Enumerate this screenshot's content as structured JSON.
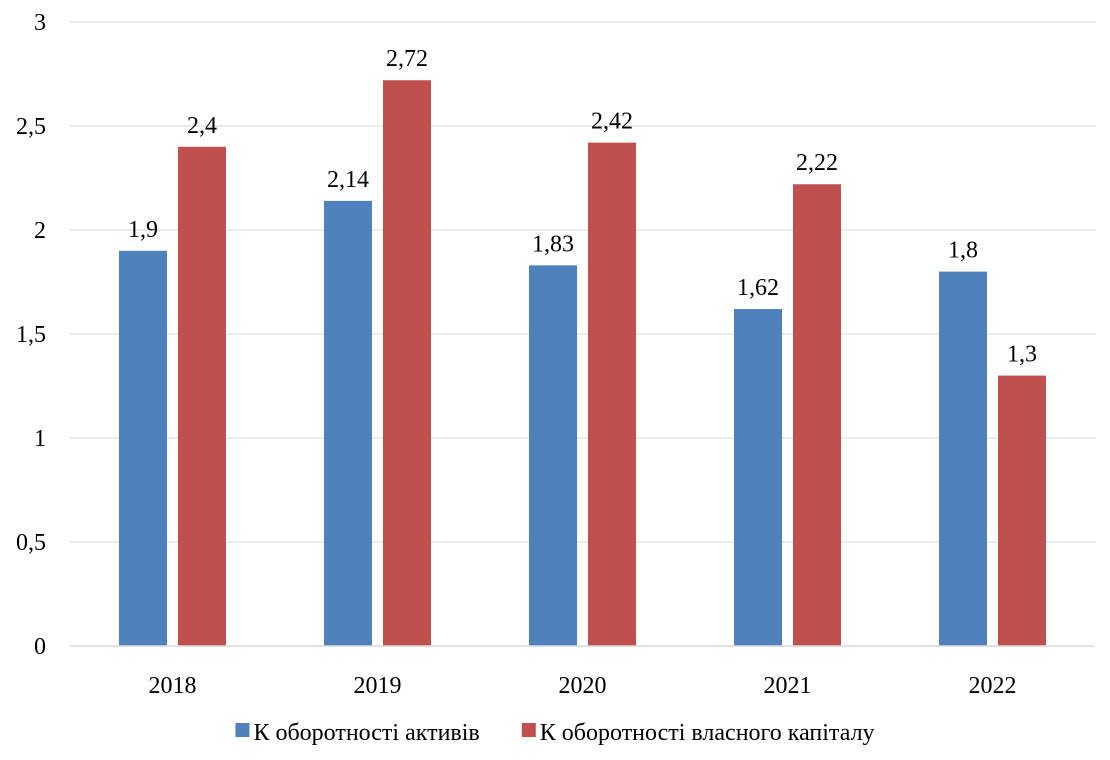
{
  "chart_data": {
    "type": "bar",
    "categories": [
      "2018",
      "2019",
      "2020",
      "2021",
      "2022"
    ],
    "series": [
      {
        "name": "К оборотності активів",
        "values": [
          1.9,
          2.14,
          1.83,
          1.62,
          1.8
        ],
        "labels": [
          "1,9",
          "2,14",
          "1,83",
          "1,62",
          "1,8"
        ],
        "color": "#4f81bd"
      },
      {
        "name": "К оборотності власного капіталу",
        "values": [
          2.4,
          2.72,
          2.42,
          2.22,
          1.3
        ],
        "labels": [
          "2,4",
          "2,72",
          "2,42",
          "2,22",
          "1,3"
        ],
        "color": "#c0504d"
      }
    ],
    "ylim": [
      0,
      3
    ],
    "yticks": [
      0,
      0.5,
      1,
      1.5,
      2,
      2.5,
      3
    ],
    "ytick_labels": [
      "0",
      "0,5",
      "1",
      "1,5",
      "2",
      "2,5",
      "3"
    ],
    "grid": true,
    "legend_position": "bottom",
    "title": "",
    "xlabel": "",
    "ylabel": ""
  }
}
